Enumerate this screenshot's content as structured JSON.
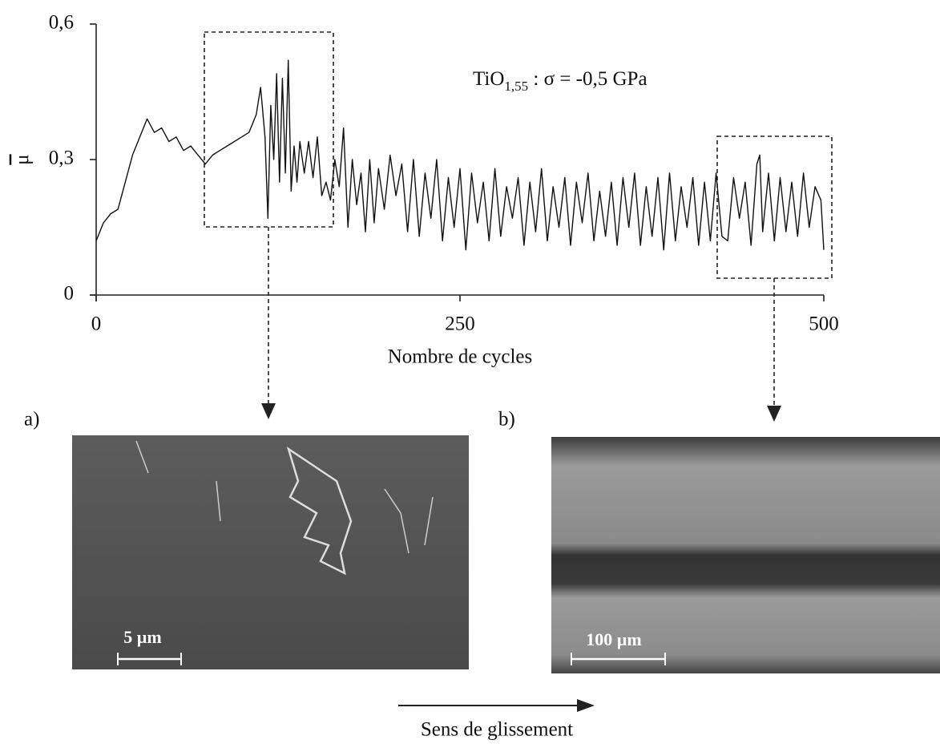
{
  "chart_data": {
    "type": "line",
    "annotation": {
      "text": "TiO",
      "subscript": "1,55",
      "rest": " : σ = -0,5 GPa"
    },
    "xlabel": "Nombre de cycles",
    "ylabel": "μ",
    "xlim": [
      0,
      500
    ],
    "xticks": [
      0,
      250,
      500
    ],
    "ylim": [
      0,
      0.6
    ],
    "yticks": [
      {
        "value": 0,
        "label": "0"
      },
      {
        "value": 0.3,
        "label": "0,3"
      },
      {
        "value": 0.6,
        "label": "0,6"
      }
    ],
    "color": "#111111",
    "x": [
      0,
      5,
      10,
      15,
      20,
      25,
      30,
      35,
      40,
      45,
      50,
      55,
      60,
      65,
      70,
      75,
      80,
      85,
      90,
      95,
      100,
      105,
      110,
      113,
      116,
      118,
      120,
      122,
      124,
      126,
      128,
      130,
      132,
      134,
      136,
      138,
      140,
      143,
      146,
      149,
      152,
      155,
      158,
      161,
      164,
      167,
      170,
      173,
      176,
      179,
      182,
      185,
      188,
      191,
      194,
      198,
      202,
      206,
      210,
      214,
      218,
      222,
      226,
      230,
      234,
      238,
      242,
      246,
      250,
      254,
      258,
      262,
      266,
      270,
      274,
      278,
      282,
      286,
      290,
      294,
      298,
      302,
      306,
      310,
      314,
      318,
      322,
      326,
      330,
      334,
      338,
      342,
      346,
      350,
      354,
      358,
      362,
      366,
      370,
      374,
      378,
      382,
      386,
      390,
      394,
      398,
      402,
      406,
      410,
      414,
      418,
      422,
      426,
      430,
      434,
      438,
      442,
      446,
      450,
      454,
      456,
      458,
      462,
      466,
      470,
      474,
      478,
      482,
      486,
      490,
      494,
      498,
      500
    ],
    "values": [
      0.12,
      0.16,
      0.18,
      0.19,
      0.25,
      0.31,
      0.35,
      0.39,
      0.36,
      0.37,
      0.34,
      0.35,
      0.32,
      0.33,
      0.31,
      0.29,
      0.31,
      0.32,
      0.33,
      0.34,
      0.35,
      0.36,
      0.4,
      0.46,
      0.35,
      0.17,
      0.42,
      0.3,
      0.49,
      0.25,
      0.48,
      0.27,
      0.52,
      0.23,
      0.33,
      0.25,
      0.34,
      0.27,
      0.34,
      0.26,
      0.35,
      0.22,
      0.25,
      0.21,
      0.3,
      0.24,
      0.37,
      0.15,
      0.3,
      0.2,
      0.27,
      0.14,
      0.3,
      0.16,
      0.28,
      0.19,
      0.31,
      0.22,
      0.29,
      0.14,
      0.3,
      0.13,
      0.27,
      0.17,
      0.3,
      0.12,
      0.26,
      0.15,
      0.28,
      0.1,
      0.27,
      0.16,
      0.25,
      0.12,
      0.28,
      0.13,
      0.24,
      0.17,
      0.26,
      0.11,
      0.25,
      0.14,
      0.28,
      0.12,
      0.24,
      0.15,
      0.26,
      0.11,
      0.25,
      0.16,
      0.27,
      0.12,
      0.23,
      0.13,
      0.25,
      0.11,
      0.26,
      0.15,
      0.27,
      0.11,
      0.24,
      0.13,
      0.26,
      0.1,
      0.27,
      0.12,
      0.24,
      0.15,
      0.26,
      0.11,
      0.25,
      0.12,
      0.27,
      0.13,
      0.12,
      0.26,
      0.17,
      0.25,
      0.11,
      0.29,
      0.31,
      0.14,
      0.27,
      0.12,
      0.26,
      0.14,
      0.25,
      0.13,
      0.27,
      0.15,
      0.24,
      0.21,
      0.1
    ]
  },
  "panels": [
    {
      "label": "a)",
      "scale_bar": "5 µm"
    },
    {
      "label": "b)",
      "scale_bar": "100 µm"
    }
  ],
  "direction": "Sens de glissement"
}
